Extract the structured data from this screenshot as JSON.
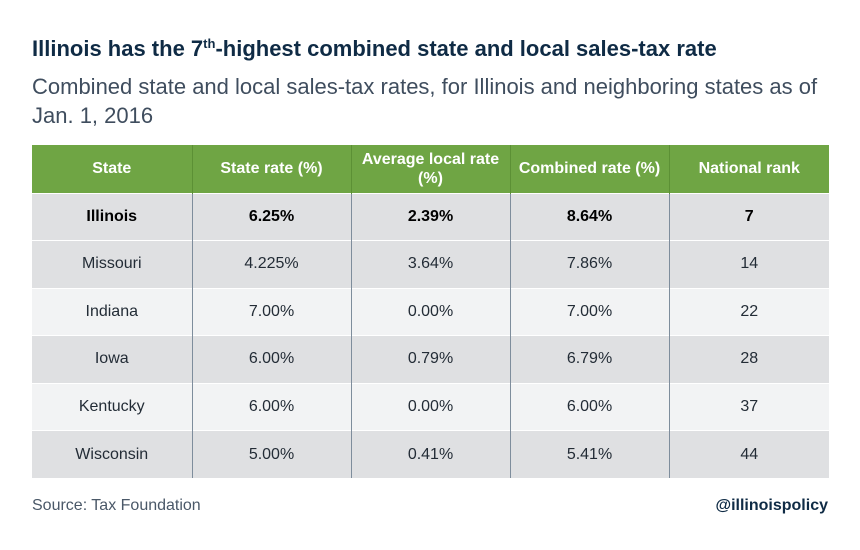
{
  "chart_data": {
    "type": "table",
    "title_prefix": "Illinois has the 7",
    "title_sup": "th",
    "title_suffix": "-highest combined state and local sales-tax rate",
    "subtitle": "Combined state and local sales-tax rates, for Illinois and neighboring states as of Jan. 1, 2016",
    "columns": [
      "State",
      "State rate (%)",
      "Average local rate (%)",
      "Combined rate (%)",
      "National rank"
    ],
    "rows": [
      [
        "Illinois",
        "6.25%",
        "2.39%",
        "8.64%",
        "7"
      ],
      [
        "Missouri",
        "4.225%",
        "3.64%",
        "7.86%",
        "14"
      ],
      [
        "Indiana",
        "7.00%",
        "0.00%",
        "7.00%",
        "22"
      ],
      [
        "Iowa",
        "6.00%",
        "0.79%",
        "6.79%",
        "28"
      ],
      [
        "Kentucky",
        "6.00%",
        "0.00%",
        "6.00%",
        "37"
      ],
      [
        "Wisconsin",
        "5.00%",
        "0.41%",
        "5.41%",
        "44"
      ]
    ],
    "highlight_row": "Illinois",
    "source": "Source: Tax Foundation",
    "handle": "@illinoispolicy"
  },
  "colors": {
    "header_bg": "#6fa544",
    "title": "#0f2b45",
    "row_odd": "#dfe0e2",
    "row_even": "#f2f3f4"
  }
}
